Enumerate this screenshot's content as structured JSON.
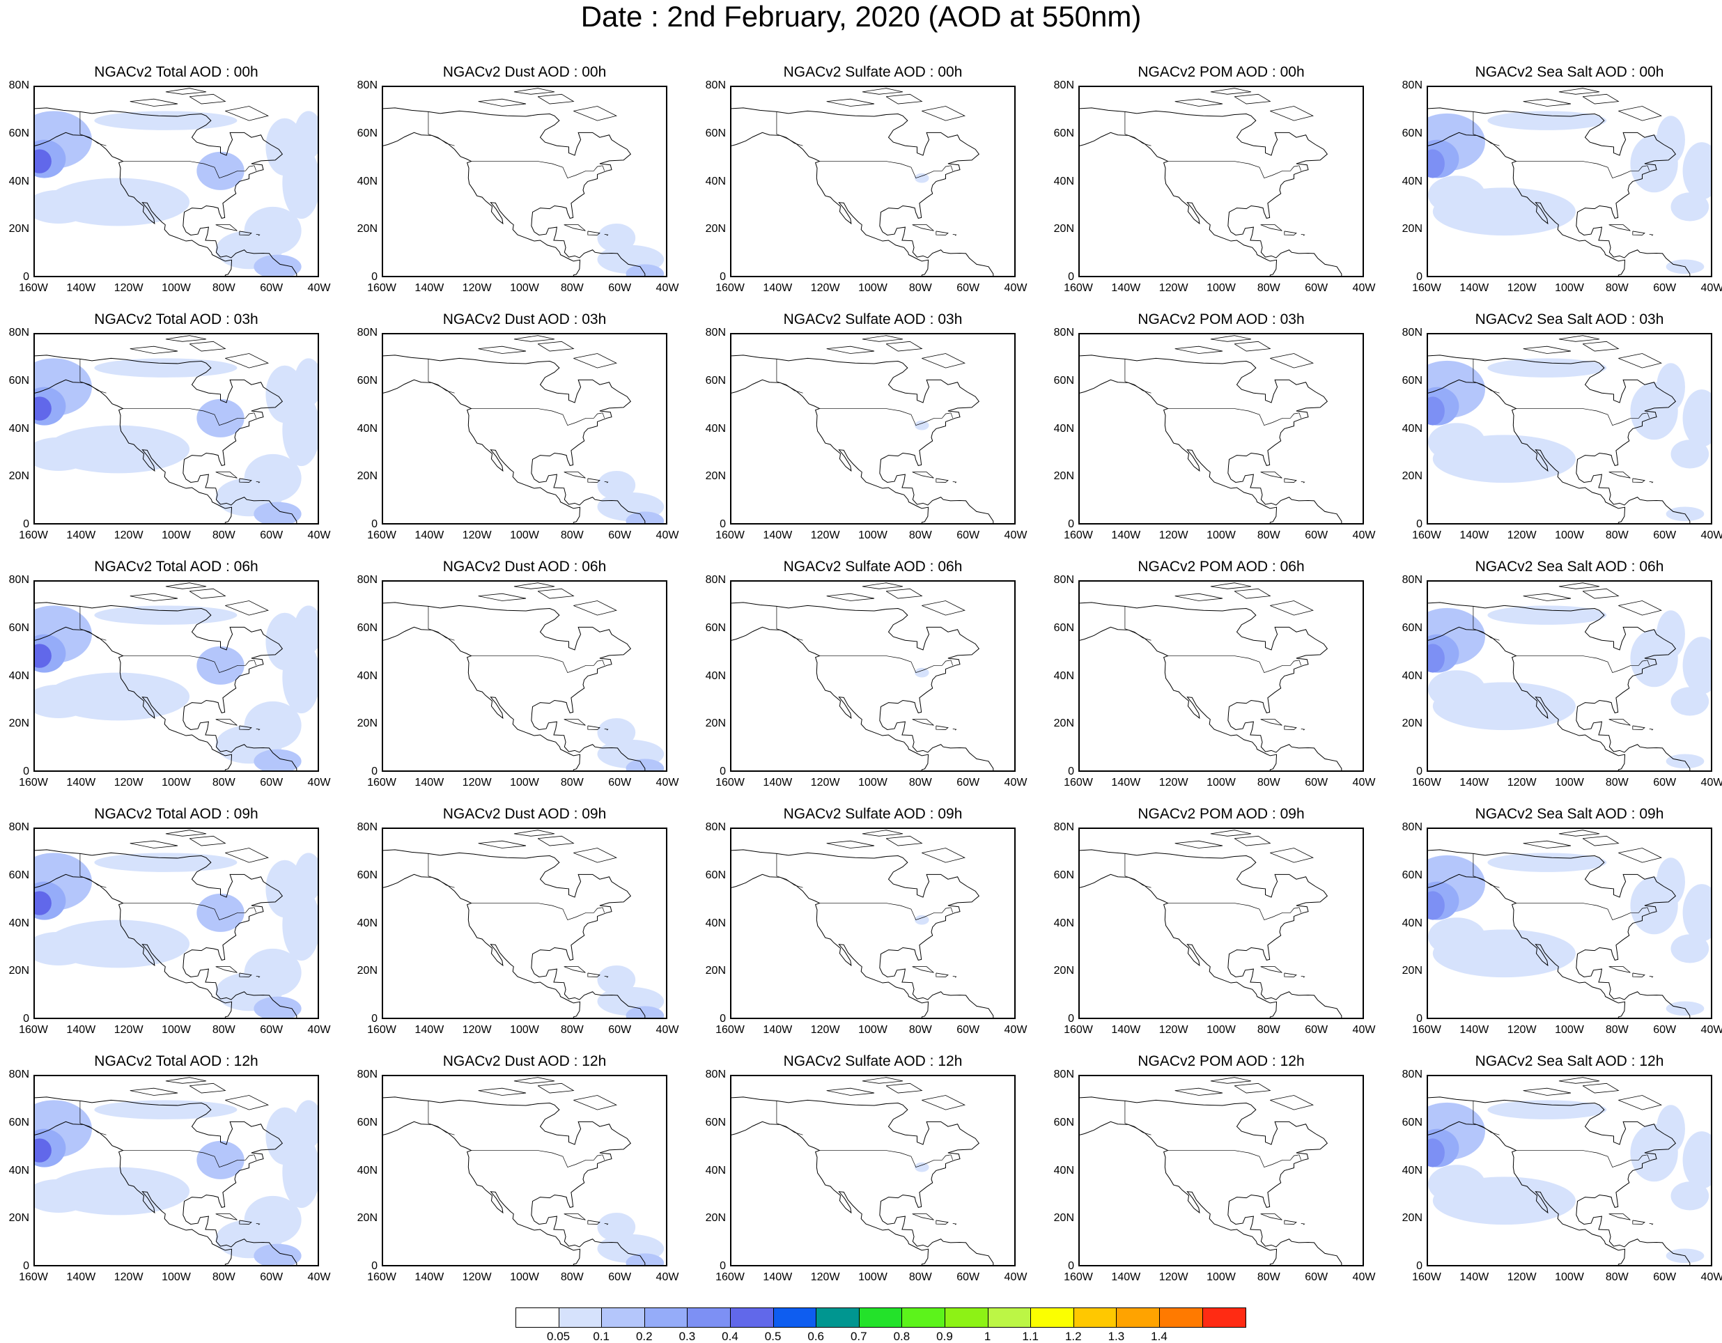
{
  "title": "Date : 2nd February, 2020 (AOD at 550nm)",
  "lat_ticks": [
    "80N",
    "60N",
    "40N",
    "20N",
    "0"
  ],
  "lon_ticks": [
    "160W",
    "140W",
    "120W",
    "100W",
    "80W",
    "60W",
    "40W"
  ],
  "panels": [
    [
      {
        "title": "NGACv2 Total AOD : 00h",
        "species": "total"
      },
      {
        "title": "NGACv2 Dust AOD : 00h",
        "species": "dust"
      },
      {
        "title": "NGACv2 Sulfate AOD : 00h",
        "species": "sulfate"
      },
      {
        "title": "NGACv2 POM AOD : 00h",
        "species": "pom"
      },
      {
        "title": "NGACv2 Sea Salt AOD : 00h",
        "species": "seasalt"
      }
    ],
    [
      {
        "title": "NGACv2 Total AOD : 03h",
        "species": "total"
      },
      {
        "title": "NGACv2 Dust AOD : 03h",
        "species": "dust"
      },
      {
        "title": "NGACv2 Sulfate AOD : 03h",
        "species": "sulfate"
      },
      {
        "title": "NGACv2 POM AOD : 03h",
        "species": "pom"
      },
      {
        "title": "NGACv2 Sea Salt AOD : 03h",
        "species": "seasalt"
      }
    ],
    [
      {
        "title": "NGACv2 Total AOD : 06h",
        "species": "total"
      },
      {
        "title": "NGACv2 Dust AOD : 06h",
        "species": "dust"
      },
      {
        "title": "NGACv2 Sulfate AOD : 06h",
        "species": "sulfate"
      },
      {
        "title": "NGACv2 POM AOD : 06h",
        "species": "pom"
      },
      {
        "title": "NGACv2 Sea Salt AOD : 06h",
        "species": "seasalt"
      }
    ],
    [
      {
        "title": "NGACv2 Total AOD : 09h",
        "species": "total"
      },
      {
        "title": "NGACv2 Dust AOD : 09h",
        "species": "dust"
      },
      {
        "title": "NGACv2 Sulfate AOD : 09h",
        "species": "sulfate"
      },
      {
        "title": "NGACv2 POM AOD : 09h",
        "species": "pom"
      },
      {
        "title": "NGACv2 Sea Salt  AOD : 09h",
        "species": "seasalt"
      }
    ],
    [
      {
        "title": "NGACv2 Total AOD  : 12h",
        "species": "total"
      },
      {
        "title": "NGACv2 Dust AOD : 12h",
        "species": "dust"
      },
      {
        "title": "NGACv2 Sulfate AOD : 12h",
        "species": "sulfate"
      },
      {
        "title": "NGACv2 POM  AOD : 12h",
        "species": "pom"
      },
      {
        "title": "NGACv2 Sea Salt  AOD : 12h",
        "species": "seasalt"
      }
    ]
  ],
  "colorbar": {
    "colors": [
      "#ffffff",
      "#d6e2fc",
      "#b4c6fb",
      "#95acf9",
      "#7d90f4",
      "#6168ea",
      "#0e5df0",
      "#009690",
      "#23e22a",
      "#5cf31b",
      "#8df215",
      "#bcf645",
      "#fbff00",
      "#ffc800",
      "#ffa300",
      "#ff7a00",
      "#ff2b13"
    ],
    "labels": [
      "0.05",
      "0.1",
      "0.2",
      "0.3",
      "0.4",
      "0.5",
      "0.6",
      "0.7",
      "0.8",
      "0.9",
      "1",
      "1.1",
      "1.2",
      "1.3",
      "1.4"
    ]
  }
}
